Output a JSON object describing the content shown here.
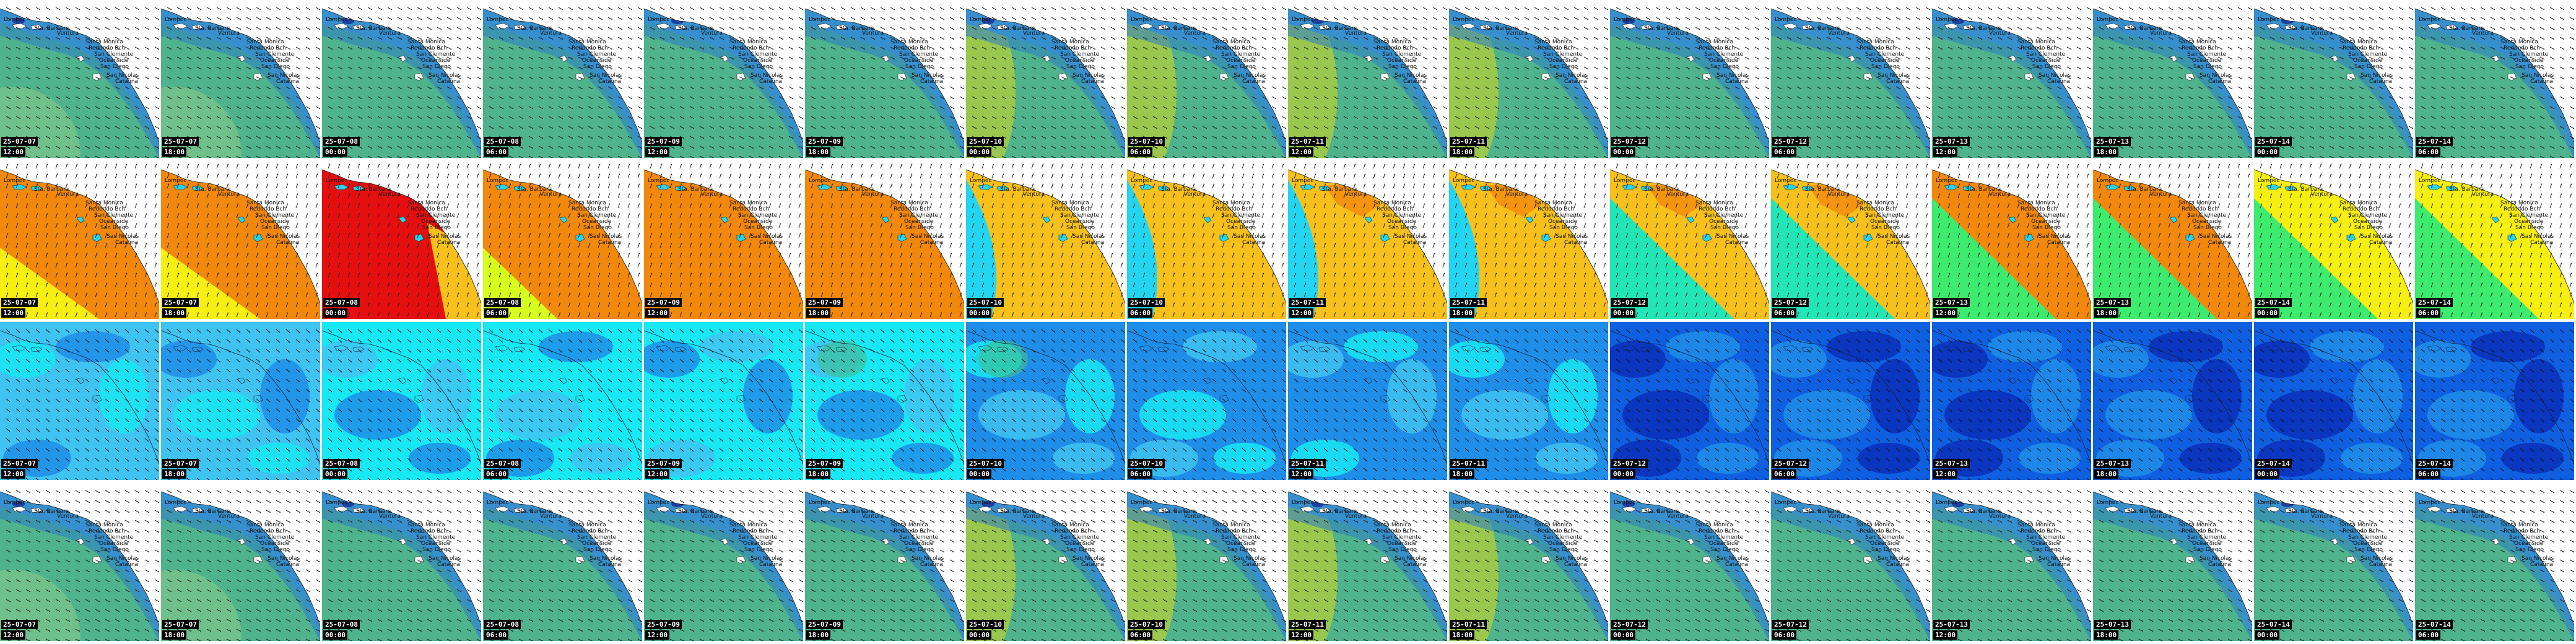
{
  "places": [
    "Lompoc",
    "Sta. Barbara",
    "Ventura",
    "Santa Monica",
    "Redondo Bch",
    "San Clemente",
    "Oceanside",
    "San Diego",
    "San Nicolas",
    "Catalina"
  ],
  "timestamps": [
    {
      "date": "25-07-07",
      "time": "12:00"
    },
    {
      "date": "25-07-07",
      "time": "18:00"
    },
    {
      "date": "25-07-08",
      "time": "00:00"
    },
    {
      "date": "25-07-08",
      "time": "06:00"
    },
    {
      "date": "25-07-09",
      "time": "12:00"
    },
    {
      "date": "25-07-09",
      "time": "18:00"
    },
    {
      "date": "25-07-10",
      "time": "00:00"
    },
    {
      "date": "25-07-10",
      "time": "06:00"
    },
    {
      "date": "25-07-11",
      "time": "12:00"
    },
    {
      "date": "25-07-11",
      "time": "18:00"
    },
    {
      "date": "25-07-12",
      "time": "00:00"
    },
    {
      "date": "25-07-12",
      "time": "06:00"
    },
    {
      "date": "25-07-13",
      "time": "12:00"
    },
    {
      "date": "25-07-13",
      "time": "18:00"
    },
    {
      "date": "25-07-14",
      "time": "00:00"
    },
    {
      "date": "25-07-14",
      "time": "06:00"
    }
  ],
  "rows": [
    {
      "name": "wave-height",
      "colors": {
        "sea": "#4fb38d",
        "band": "#6fc08a",
        "near": "#45a6d6",
        "coast": "#2c7bc6",
        "deep": "#1d3f9f",
        "land": "#ffffff",
        "hot": "#9ac74e"
      }
    },
    {
      "name": "wave-period",
      "colors": {
        "yellow": "#f7c01b",
        "orange": "#f2880c",
        "red": "#e60f0f",
        "lime": "#d6ff1e",
        "cyan": "#22d6f2",
        "teal": "#23e6b6",
        "green": "#3dec6e",
        "brightyellow": "#f8ef12",
        "land": "#ffffff"
      }
    },
    {
      "name": "wind-speed",
      "colors": {
        "cyan": "#17e8f4",
        "light": "#3fc3f1",
        "mid": "#1f8ee8",
        "blue": "#0f60e0",
        "navy": "#0b2fb8",
        "green": "#3fc08a"
      }
    },
    {
      "name": "wave-height-repeat",
      "colors": {
        "sea": "#4fb38d",
        "band": "#6fc08a",
        "near": "#45a6d6",
        "coast": "#2c7bc6",
        "deep": "#1d3f9f",
        "land": "#ffffff",
        "hot": "#9ac74e"
      }
    }
  ]
}
